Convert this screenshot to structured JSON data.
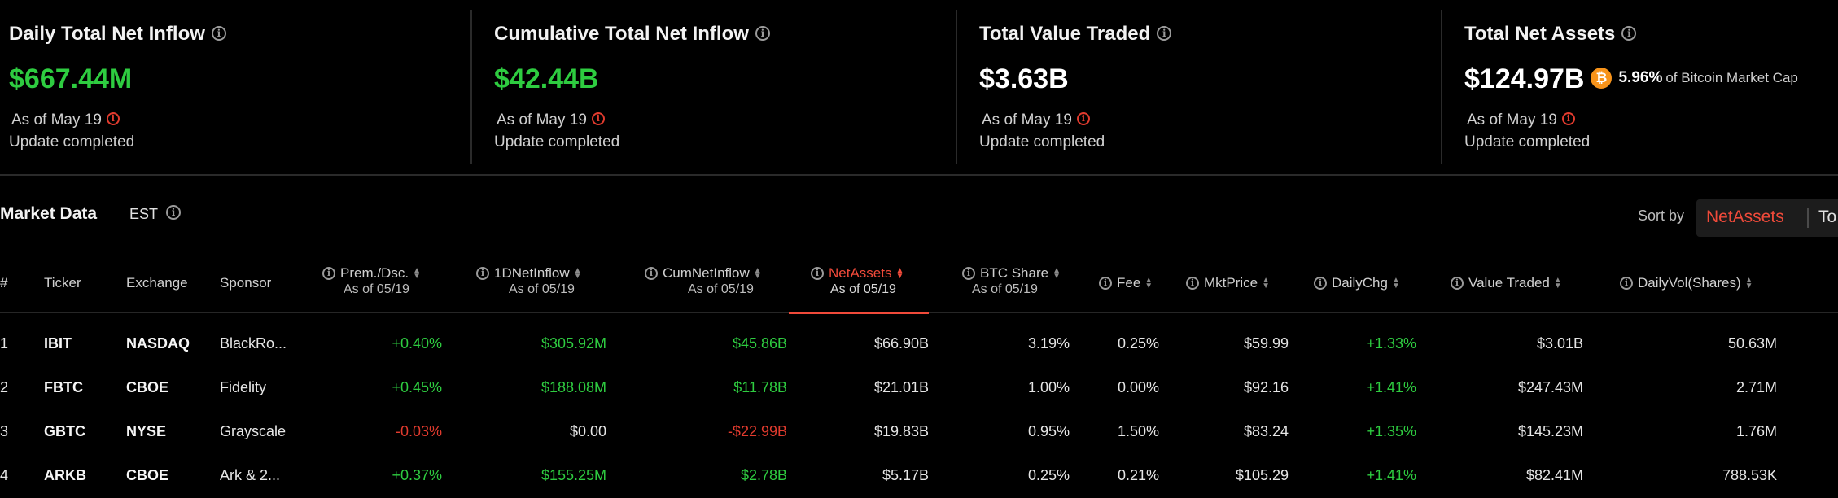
{
  "stats": [
    {
      "title": "Daily Total Net Inflow",
      "value": "$667.44M",
      "value_color": "#2ecc40",
      "as_of": "As of May 19",
      "update": "Update completed"
    },
    {
      "title": "Cumulative Total Net Inflow",
      "value": "$42.44B",
      "value_color": "#2ecc40",
      "as_of": "As of May 19",
      "update": "Update completed"
    },
    {
      "title": "Total Value Traded",
      "value": "$3.63B",
      "value_color": "#ffffff",
      "as_of": "As of May 19",
      "update": "Update completed"
    },
    {
      "title": "Total Net Assets",
      "value": "$124.97B",
      "value_color": "#ffffff",
      "btc_share_pct": "5.96%",
      "btc_share_label": "of Bitcoin Market Cap",
      "as_of": "As of May 19",
      "update": "Update completed"
    }
  ],
  "market": {
    "title": "Market Data",
    "timezone": "EST",
    "sort_label": "Sort by",
    "sort_active": "NetAssets",
    "sort_other": "To"
  },
  "columns": {
    "num": "#",
    "ticker": "Ticker",
    "exchange": "Exchange",
    "sponsor": "Sponsor",
    "prem": "Prem./Dsc.",
    "prem_sub": "As of 05/19",
    "inflow": "1DNetInflow",
    "inflow_sub": "As of 05/19",
    "cum": "CumNetInflow",
    "cum_sub": "As of 05/19",
    "assets": "NetAssets",
    "assets_sub": "As of 05/19",
    "btc": "BTC Share",
    "btc_sub": "As of 05/19",
    "fee": "Fee",
    "price": "MktPrice",
    "chg": "DailyChg",
    "traded": "Value Traded",
    "vol": "DailyVol(Shares)"
  },
  "rows": [
    {
      "num": "1",
      "ticker": "IBIT",
      "exchange": "NASDAQ",
      "sponsor": "BlackRo...",
      "prem": "+0.40%",
      "inflow": "$305.92M",
      "cum": "$45.86B",
      "assets": "$66.90B",
      "btc": "3.19%",
      "fee": "0.25%",
      "price": "$59.99",
      "chg": "+1.33%",
      "traded": "$3.01B",
      "vol": "50.63M"
    },
    {
      "num": "2",
      "ticker": "FBTC",
      "exchange": "CBOE",
      "sponsor": "Fidelity",
      "prem": "+0.45%",
      "inflow": "$188.08M",
      "cum": "$11.78B",
      "assets": "$21.01B",
      "btc": "1.00%",
      "fee": "0.00%",
      "price": "$92.16",
      "chg": "+1.41%",
      "traded": "$247.43M",
      "vol": "2.71M"
    },
    {
      "num": "3",
      "ticker": "GBTC",
      "exchange": "NYSE",
      "sponsor": "Grayscale",
      "prem": "-0.03%",
      "inflow": "$0.00",
      "cum": "-$22.99B",
      "assets": "$19.83B",
      "btc": "0.95%",
      "fee": "1.50%",
      "price": "$83.24",
      "chg": "+1.35%",
      "traded": "$145.23M",
      "vol": "1.76M"
    },
    {
      "num": "4",
      "ticker": "ARKB",
      "exchange": "CBOE",
      "sponsor": "Ark & 2...",
      "prem": "+0.37%",
      "inflow": "$155.25M",
      "cum": "$2.78B",
      "assets": "$5.17B",
      "btc": "0.25%",
      "fee": "0.21%",
      "price": "$105.29",
      "chg": "+1.41%",
      "traded": "$82.41M",
      "vol": "788.53K"
    }
  ],
  "colors": {
    "positive": "#2ecc40",
    "negative": "#e23b2e",
    "accent": "#f04a3a",
    "background": "#000000"
  },
  "icons": {
    "info": "info-circle-icon",
    "warning": "alert-circle-icon",
    "bitcoin": "bitcoin-coin-icon",
    "sort": "sort-arrows-icon"
  }
}
